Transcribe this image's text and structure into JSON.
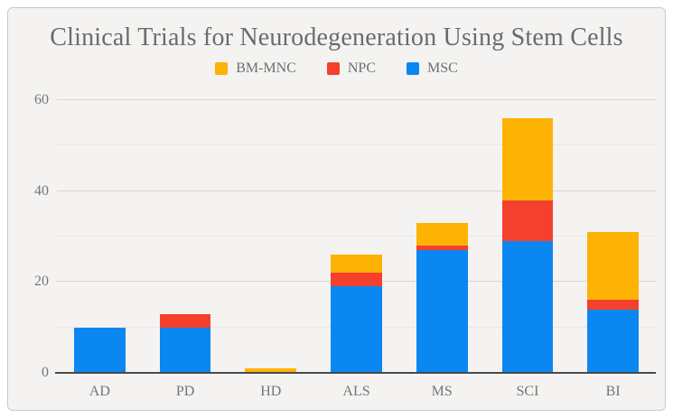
{
  "chart_data": {
    "type": "bar",
    "stacked": true,
    "title": "Clinical Trials for Neurodegeneration Using Stem Cells",
    "categories": [
      "AD",
      "PD",
      "HD",
      "ALS",
      "MS",
      "SCI",
      "BI"
    ],
    "series": [
      {
        "name": "BM-MNC",
        "color": "#FEB204",
        "values": [
          0,
          0,
          1,
          4,
          5,
          18,
          15
        ]
      },
      {
        "name": "NPC",
        "color": "#F4402D",
        "values": [
          0,
          3,
          0,
          3,
          1,
          9,
          2
        ]
      },
      {
        "name": "MSC",
        "color": "#0B87F1",
        "values": [
          10,
          10,
          0,
          19,
          27,
          29,
          14
        ]
      }
    ],
    "stack_order_bottom_to_top": [
      "MSC",
      "NPC",
      "BM-MNC"
    ],
    "totals": [
      10,
      13,
      1,
      26,
      33,
      56,
      31
    ],
    "xlabel": "",
    "ylabel": "",
    "ylim": [
      0,
      60
    ],
    "yticks": [
      0,
      20,
      40,
      60
    ],
    "minor_gridlines": [
      10,
      30,
      50
    ],
    "grid": true,
    "legend_position": "top",
    "colors": {
      "background": "#f4f3f1",
      "border": "#c9c9c9",
      "title_text": "#6b6b6b",
      "axis_text": "#757575",
      "axis_line": "#4a4a4a",
      "major_gridline": "#d7d6d4",
      "minor_gridline": "#e8e7e5"
    }
  }
}
